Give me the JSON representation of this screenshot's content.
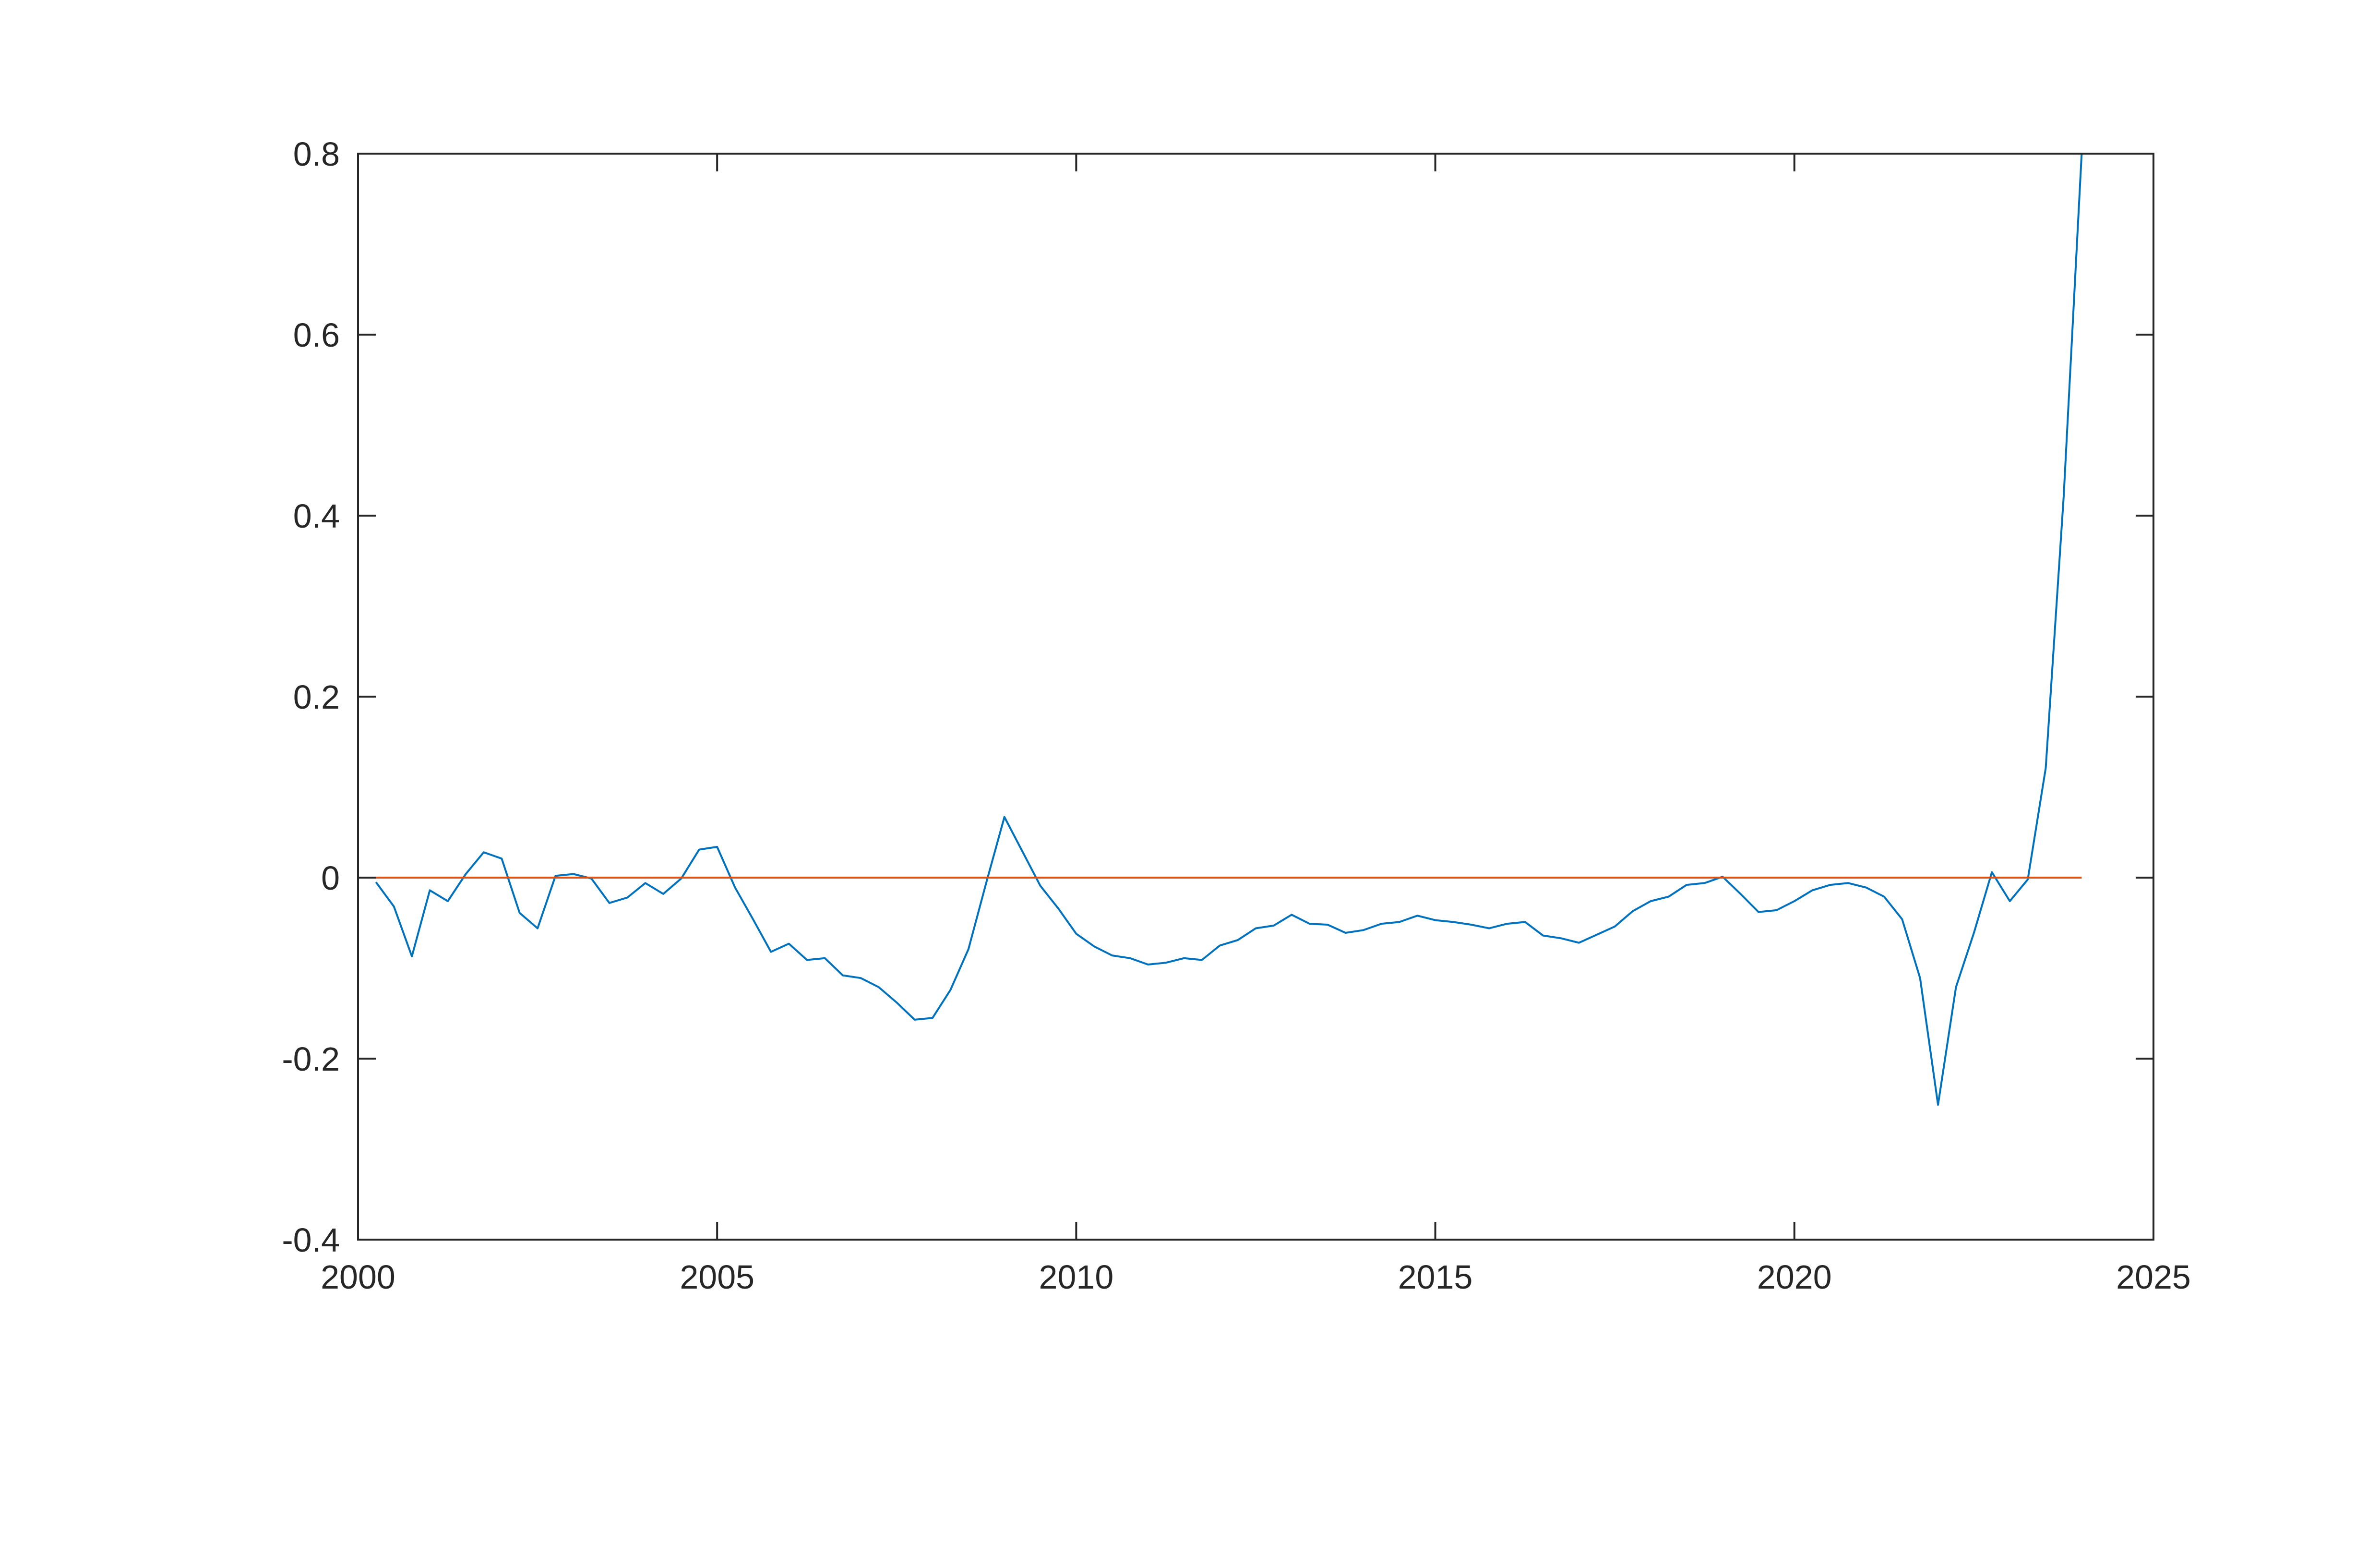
{
  "chart_data": {
    "type": "line",
    "title": "",
    "xlabel": "",
    "ylabel": "",
    "xlim": [
      2000,
      2025
    ],
    "ylim": [
      -0.4,
      0.8
    ],
    "xticks": [
      "2000",
      "2005",
      "2010",
      "2015",
      "2020",
      "2025"
    ],
    "yticks": [
      "-0.4",
      "-0.2",
      "0",
      "0.2",
      "0.4",
      "0.6",
      "0.8"
    ],
    "grid": false,
    "legend": false,
    "colors": {
      "series": "#0072BD",
      "baseline": "#D95319",
      "axes": "#262626"
    },
    "series": [
      {
        "x": [
          2000.25,
          2000.5,
          2000.75,
          2001.0,
          2001.25,
          2001.5,
          2001.75,
          2002.0,
          2002.25,
          2002.5,
          2002.75,
          2003.0,
          2003.25,
          2003.5,
          2003.75,
          2004.0,
          2004.25,
          2004.5,
          2004.75,
          2005.0,
          2005.25,
          2005.5,
          2005.75,
          2006.0,
          2006.25,
          2006.5,
          2006.75,
          2007.0,
          2007.25,
          2007.5,
          2007.75,
          2008.0,
          2008.25,
          2008.5,
          2008.75,
          2009.0,
          2009.25,
          2009.5,
          2009.75,
          2010.0,
          2010.25,
          2010.5,
          2010.75,
          2011.0,
          2011.25,
          2011.5,
          2011.75,
          2012.0,
          2012.25,
          2012.5,
          2012.75,
          2013.0,
          2013.25,
          2013.5,
          2013.75,
          2014.0,
          2014.25,
          2014.5,
          2014.75,
          2015.0,
          2015.25,
          2015.5,
          2015.75,
          2016.0,
          2016.25,
          2016.5,
          2016.75,
          2017.0,
          2017.25,
          2017.5,
          2017.75,
          2018.0,
          2018.25,
          2018.5,
          2018.75,
          2019.0,
          2019.25,
          2019.5,
          2019.75,
          2020.0,
          2020.25,
          2020.5,
          2020.75,
          2021.0,
          2021.25,
          2021.5,
          2021.75,
          2022.0,
          2022.25,
          2022.5,
          2022.75,
          2023.0,
          2023.25,
          2023.5,
          2023.75,
          2024.0
        ],
        "values": [
          -0.005,
          -0.032,
          -0.087,
          -0.014,
          -0.026,
          0.004,
          0.028,
          0.021,
          -0.039,
          -0.056,
          0.002,
          0.004,
          -0.001,
          -0.028,
          -0.022,
          -0.006,
          -0.018,
          -0.001,
          0.031,
          0.034,
          -0.011,
          -0.046,
          -0.082,
          -0.073,
          -0.091,
          -0.089,
          -0.108,
          -0.111,
          -0.121,
          -0.138,
          -0.157,
          -0.155,
          -0.124,
          -0.079,
          -0.005,
          0.067,
          0.029,
          -0.009,
          -0.034,
          -0.062,
          -0.076,
          -0.086,
          -0.089,
          -0.096,
          -0.094,
          -0.089,
          -0.091,
          -0.075,
          -0.069,
          -0.056,
          -0.053,
          -0.041,
          -0.051,
          -0.052,
          -0.061,
          -0.058,
          -0.051,
          -0.049,
          -0.042,
          -0.047,
          -0.049,
          -0.052,
          -0.056,
          -0.051,
          -0.049,
          -0.064,
          -0.067,
          -0.072,
          -0.063,
          -0.054,
          -0.037,
          -0.026,
          -0.021,
          -0.008,
          -0.006,
          0.001,
          -0.018,
          -0.038,
          -0.036,
          -0.026,
          -0.014,
          -0.008,
          -0.006,
          -0.011,
          -0.021,
          -0.046,
          -0.111,
          -0.251,
          -0.121,
          -0.061,
          0.006,
          -0.026,
          -0.002,
          0.121,
          0.421,
          0.8
        ]
      },
      {
        "x": [
          2000.25,
          2024.0
        ],
        "values": [
          0,
          0
        ]
      }
    ]
  }
}
